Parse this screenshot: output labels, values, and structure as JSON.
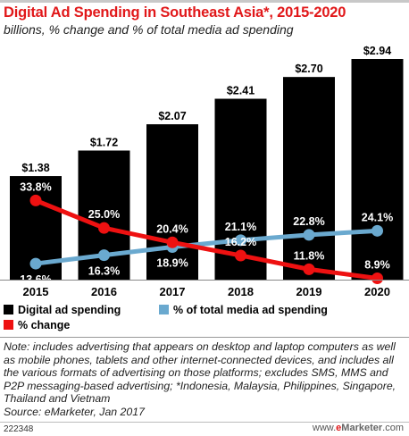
{
  "header": {
    "title": "Digital Ad Spending in Southeast Asia*, 2015-2020",
    "subtitle": "billions,  % change and % of total media ad spending"
  },
  "chart_data": {
    "type": "bar",
    "categories": [
      "2015",
      "2016",
      "2017",
      "2018",
      "2019",
      "2020"
    ],
    "series": [
      {
        "name": "Digital ad spending",
        "type": "bar",
        "values": [
          1.38,
          1.72,
          2.07,
          2.41,
          2.7,
          2.94
        ],
        "labels": [
          "$1.38",
          "$1.72",
          "$2.07",
          "$2.41",
          "$2.70",
          "$2.94"
        ],
        "color": "#000000"
      },
      {
        "name": "% of total media ad spending",
        "type": "line",
        "values": [
          13.6,
          16.3,
          18.9,
          21.1,
          22.8,
          24.1
        ],
        "labels": [
          "13.6%",
          "16.3%",
          "18.9%",
          "21.1%",
          "22.8%",
          "24.1%"
        ],
        "color": "#6aa9cf"
      },
      {
        "name": "% change",
        "type": "line",
        "values": [
          33.8,
          25.0,
          20.4,
          16.2,
          11.8,
          8.9
        ],
        "labels": [
          "33.8%",
          "25.0%",
          "20.4%",
          "16.2%",
          "11.8%",
          "8.9%"
        ],
        "color": "#ee1111"
      }
    ],
    "ylim": [
      0,
      2.94
    ],
    "grid": false,
    "legend_position": "bottom"
  },
  "legend": {
    "items": [
      {
        "label": "Digital ad spending",
        "color": "#000000"
      },
      {
        "label": "% of total media ad spending",
        "color": "#6aa9cf"
      },
      {
        "label": "% change",
        "color": "#ee1111"
      }
    ]
  },
  "note": {
    "text": "Note: includes advertising that appears on desktop and laptop computers as well as mobile phones, tablets and other internet-connected devices, and includes all the various formats of advertising on those platforms; excludes SMS, MMS and P2P messaging-based advertising; *Indonesia, Malaysia, Philippines, Singapore, Thailand and Vietnam",
    "source": "Source: eMarketer, Jan 2017"
  },
  "footer": {
    "chart_id": "222348",
    "brand_prefix": "www.",
    "brand_name": "e",
    "brand_rest": "Marketer",
    "brand_suffix": ".com"
  }
}
